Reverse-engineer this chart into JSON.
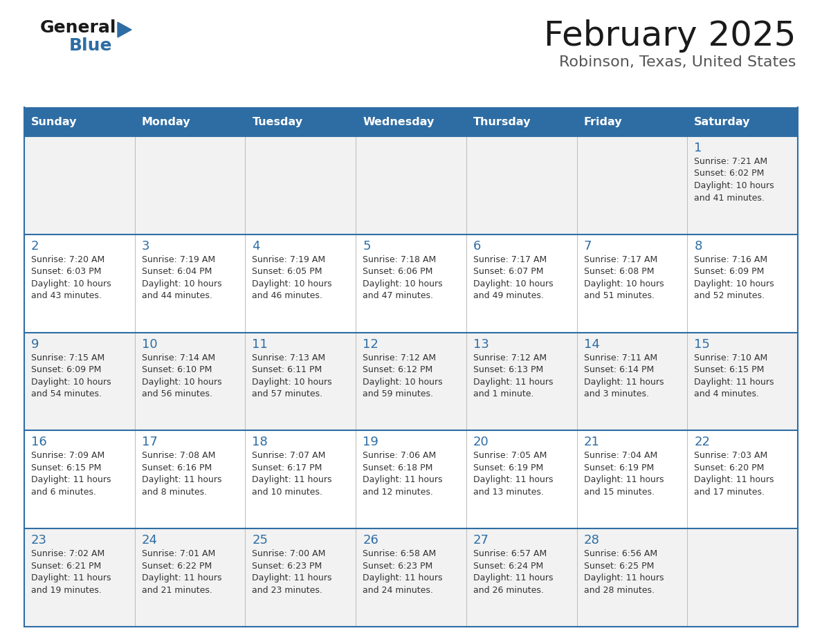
{
  "title": "February 2025",
  "subtitle": "Robinson, Texas, United States",
  "days_of_week": [
    "Sunday",
    "Monday",
    "Tuesday",
    "Wednesday",
    "Thursday",
    "Friday",
    "Saturday"
  ],
  "header_bg": "#2E6DA4",
  "header_text": "#FFFFFF",
  "row_bg": [
    "#F2F2F2",
    "#FFFFFF"
  ],
  "cell_border": "#2E6DA4",
  "day_number_color": "#2E6DA4",
  "text_color": "#333333",
  "logo_general_color": "#1a1a1a",
  "logo_blue_color": "#2E6DA4",
  "logo_triangle_color": "#2E6DA4",
  "title_color": "#1a1a1a",
  "subtitle_color": "#555555",
  "calendar_data": [
    [
      null,
      null,
      null,
      null,
      null,
      null,
      {
        "day": "1",
        "sunrise": "7:21 AM",
        "sunset": "6:02 PM",
        "daylight1": "10 hours",
        "daylight2": "and 41 minutes."
      }
    ],
    [
      {
        "day": "2",
        "sunrise": "7:20 AM",
        "sunset": "6:03 PM",
        "daylight1": "10 hours",
        "daylight2": "and 43 minutes."
      },
      {
        "day": "3",
        "sunrise": "7:19 AM",
        "sunset": "6:04 PM",
        "daylight1": "10 hours",
        "daylight2": "and 44 minutes."
      },
      {
        "day": "4",
        "sunrise": "7:19 AM",
        "sunset": "6:05 PM",
        "daylight1": "10 hours",
        "daylight2": "and 46 minutes."
      },
      {
        "day": "5",
        "sunrise": "7:18 AM",
        "sunset": "6:06 PM",
        "daylight1": "10 hours",
        "daylight2": "and 47 minutes."
      },
      {
        "day": "6",
        "sunrise": "7:17 AM",
        "sunset": "6:07 PM",
        "daylight1": "10 hours",
        "daylight2": "and 49 minutes."
      },
      {
        "day": "7",
        "sunrise": "7:17 AM",
        "sunset": "6:08 PM",
        "daylight1": "10 hours",
        "daylight2": "and 51 minutes."
      },
      {
        "day": "8",
        "sunrise": "7:16 AM",
        "sunset": "6:09 PM",
        "daylight1": "10 hours",
        "daylight2": "and 52 minutes."
      }
    ],
    [
      {
        "day": "9",
        "sunrise": "7:15 AM",
        "sunset": "6:09 PM",
        "daylight1": "10 hours",
        "daylight2": "and 54 minutes."
      },
      {
        "day": "10",
        "sunrise": "7:14 AM",
        "sunset": "6:10 PM",
        "daylight1": "10 hours",
        "daylight2": "and 56 minutes."
      },
      {
        "day": "11",
        "sunrise": "7:13 AM",
        "sunset": "6:11 PM",
        "daylight1": "10 hours",
        "daylight2": "and 57 minutes."
      },
      {
        "day": "12",
        "sunrise": "7:12 AM",
        "sunset": "6:12 PM",
        "daylight1": "10 hours",
        "daylight2": "and 59 minutes."
      },
      {
        "day": "13",
        "sunrise": "7:12 AM",
        "sunset": "6:13 PM",
        "daylight1": "11 hours",
        "daylight2": "and 1 minute."
      },
      {
        "day": "14",
        "sunrise": "7:11 AM",
        "sunset": "6:14 PM",
        "daylight1": "11 hours",
        "daylight2": "and 3 minutes."
      },
      {
        "day": "15",
        "sunrise": "7:10 AM",
        "sunset": "6:15 PM",
        "daylight1": "11 hours",
        "daylight2": "and 4 minutes."
      }
    ],
    [
      {
        "day": "16",
        "sunrise": "7:09 AM",
        "sunset": "6:15 PM",
        "daylight1": "11 hours",
        "daylight2": "and 6 minutes."
      },
      {
        "day": "17",
        "sunrise": "7:08 AM",
        "sunset": "6:16 PM",
        "daylight1": "11 hours",
        "daylight2": "and 8 minutes."
      },
      {
        "day": "18",
        "sunrise": "7:07 AM",
        "sunset": "6:17 PM",
        "daylight1": "11 hours",
        "daylight2": "and 10 minutes."
      },
      {
        "day": "19",
        "sunrise": "7:06 AM",
        "sunset": "6:18 PM",
        "daylight1": "11 hours",
        "daylight2": "and 12 minutes."
      },
      {
        "day": "20",
        "sunrise": "7:05 AM",
        "sunset": "6:19 PM",
        "daylight1": "11 hours",
        "daylight2": "and 13 minutes."
      },
      {
        "day": "21",
        "sunrise": "7:04 AM",
        "sunset": "6:19 PM",
        "daylight1": "11 hours",
        "daylight2": "and 15 minutes."
      },
      {
        "day": "22",
        "sunrise": "7:03 AM",
        "sunset": "6:20 PM",
        "daylight1": "11 hours",
        "daylight2": "and 17 minutes."
      }
    ],
    [
      {
        "day": "23",
        "sunrise": "7:02 AM",
        "sunset": "6:21 PM",
        "daylight1": "11 hours",
        "daylight2": "and 19 minutes."
      },
      {
        "day": "24",
        "sunrise": "7:01 AM",
        "sunset": "6:22 PM",
        "daylight1": "11 hours",
        "daylight2": "and 21 minutes."
      },
      {
        "day": "25",
        "sunrise": "7:00 AM",
        "sunset": "6:23 PM",
        "daylight1": "11 hours",
        "daylight2": "and 23 minutes."
      },
      {
        "day": "26",
        "sunrise": "6:58 AM",
        "sunset": "6:23 PM",
        "daylight1": "11 hours",
        "daylight2": "and 24 minutes."
      },
      {
        "day": "27",
        "sunrise": "6:57 AM",
        "sunset": "6:24 PM",
        "daylight1": "11 hours",
        "daylight2": "and 26 minutes."
      },
      {
        "day": "28",
        "sunrise": "6:56 AM",
        "sunset": "6:25 PM",
        "daylight1": "11 hours",
        "daylight2": "and 28 minutes."
      },
      null
    ]
  ],
  "fig_width": 11.88,
  "fig_height": 9.18,
  "dpi": 100
}
